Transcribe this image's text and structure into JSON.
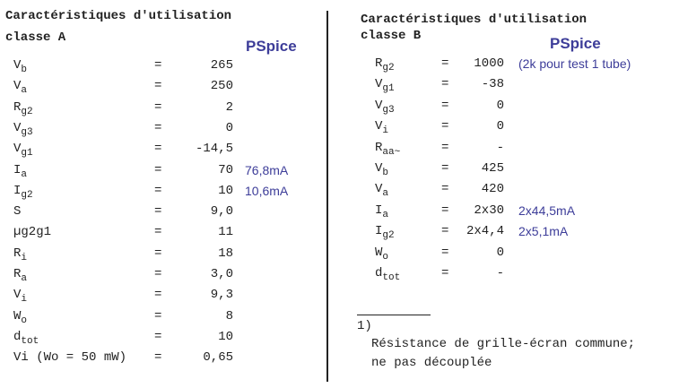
{
  "left": {
    "title": "Caractéristiques d'utilisation",
    "subtitle": "classe A",
    "pspice": "PSpice",
    "equals": "=",
    "rows": [
      {
        "sym": "V",
        "sub": "b",
        "value": "265"
      },
      {
        "sym": "V",
        "sub": "a",
        "value": "250"
      },
      {
        "sym": "R",
        "sub": "g2",
        "value": "2"
      },
      {
        "sym": "V",
        "sub": "g3",
        "value": "0"
      },
      {
        "sym": "V",
        "sub": "g1",
        "value": "-14,5"
      },
      {
        "sym": "I",
        "sub": "a",
        "value": "70",
        "note": "76,8mA"
      },
      {
        "sym": "I",
        "sub": "g2",
        "value": "10",
        "note": "10,6mA"
      },
      {
        "sym": "S",
        "value": "9,0"
      },
      {
        "sym": "µg2g1",
        "value": "11"
      },
      {
        "sym": "R",
        "sub": "i",
        "value": "18"
      },
      {
        "sym": "R",
        "sub": "a",
        "value": "3,0"
      },
      {
        "sym": "V",
        "sub": "i",
        "value": "9,3"
      },
      {
        "sym": "W",
        "sub": "o",
        "value": "8"
      },
      {
        "sym": "d",
        "sub": "tot",
        "value": "10"
      },
      {
        "sym": "Vi (Wo = 50 mW)",
        "value": "0,65"
      }
    ]
  },
  "right": {
    "title": "Caractéristiques d'utilisation",
    "subtitle": "classe B",
    "pspice": "PSpice",
    "equals": "=",
    "rows": [
      {
        "sym": "R",
        "sub": "g2",
        "value": "1000",
        "note": "(2k pour test 1 tube)"
      },
      {
        "sym": "V",
        "sub": "g1",
        "value": "-38"
      },
      {
        "sym": "V",
        "sub": "g3",
        "value": "0"
      },
      {
        "sym": "V",
        "sub": "i",
        "value": "0"
      },
      {
        "sym": "R",
        "sub": "aa~",
        "value": "-"
      },
      {
        "sym": "V",
        "sub": "b",
        "value": "425"
      },
      {
        "sym": "V",
        "sub": "a",
        "value": "420"
      },
      {
        "sym": "I",
        "sub": "a",
        "value": "2x30",
        "note": "2x44,5mA"
      },
      {
        "sym": "I",
        "sub": "g2",
        "value": "2x4,4",
        "note": "2x5,1mA"
      },
      {
        "sym": "W",
        "sub": "o",
        "value": "0"
      },
      {
        "sym": "d",
        "sub": "tot",
        "value": "-"
      }
    ],
    "footnote": {
      "mark": "1)",
      "lines": [
        "Résistance de grille-écran commune;",
        "ne pas découplée"
      ]
    }
  }
}
